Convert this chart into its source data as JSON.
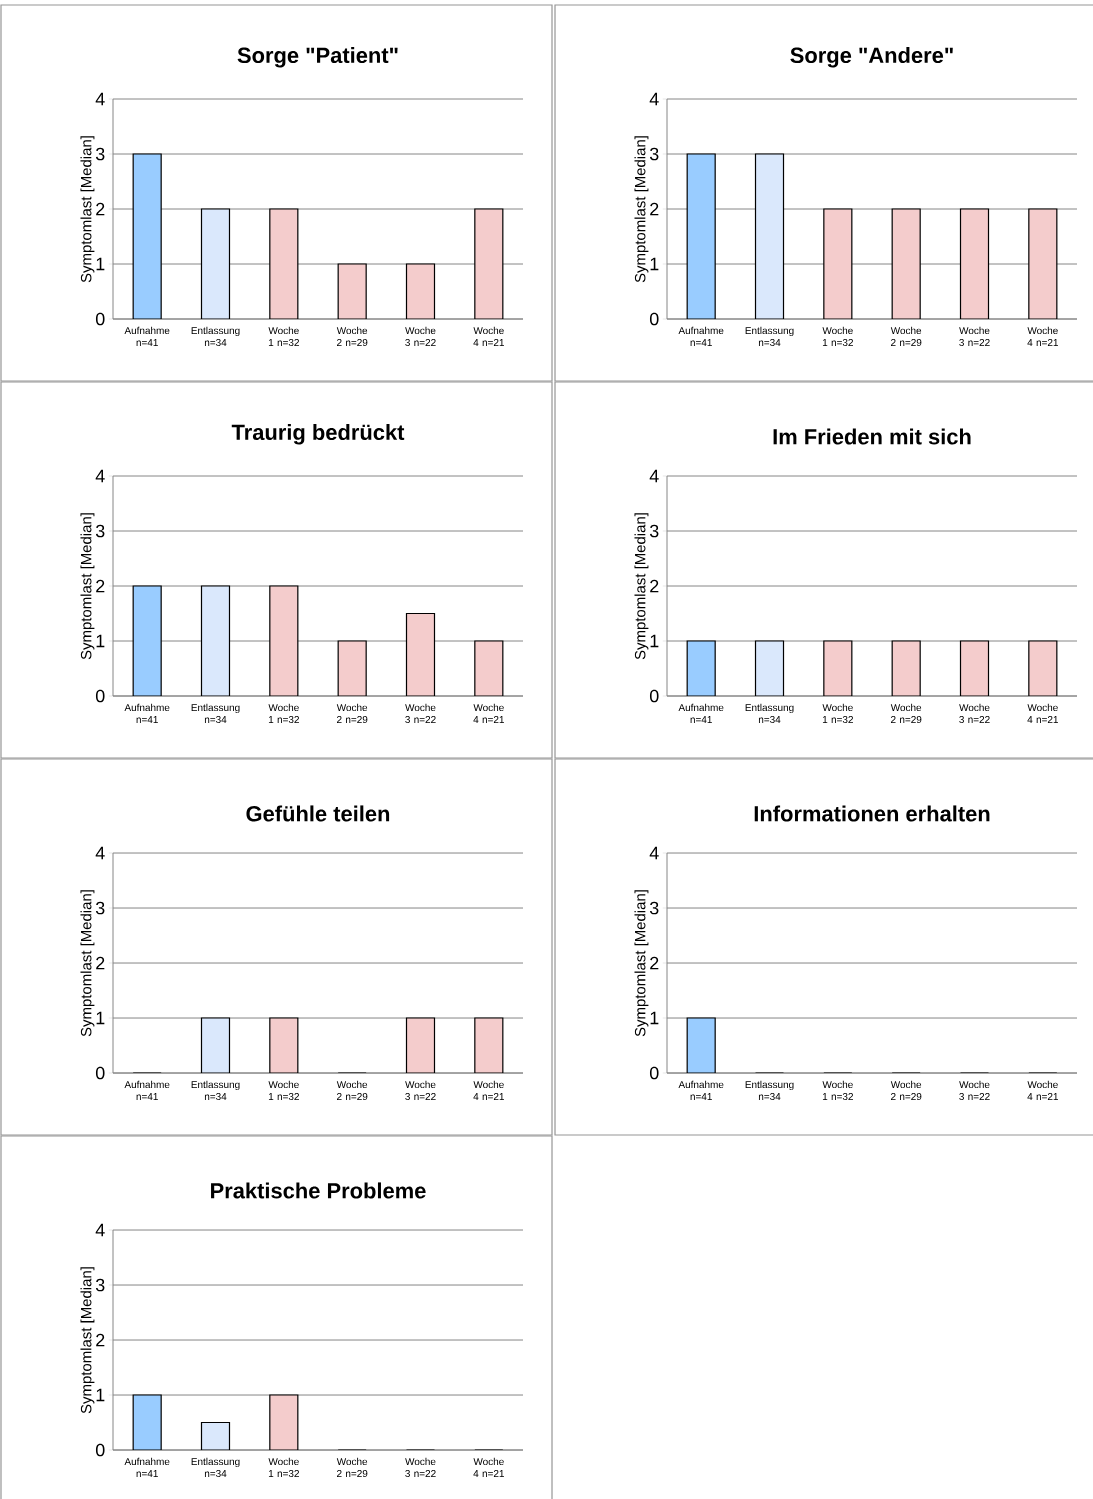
{
  "chart_data": [
    {
      "type": "bar",
      "title": "Sorge \"Patient\"",
      "ylabel": "Symptomlast [Median]",
      "categories": [
        "Aufnahme n=41",
        "Entlassung n=34",
        "Woche 1 n=32",
        "Woche 2 n=29",
        "Woche 3 n=22",
        "Woche 4 n=21"
      ],
      "values": [
        3,
        2,
        2,
        1,
        1,
        2
      ],
      "colors": [
        "#99ccff",
        "#dae8fc",
        "#f4cccc",
        "#f4cccc",
        "#f4cccc",
        "#f4cccc"
      ],
      "ylim": [
        0,
        4
      ],
      "yticks": [
        0,
        1,
        2,
        3,
        4
      ],
      "grid": "y"
    },
    {
      "type": "bar",
      "title": "Sorge \"Andere\"",
      "ylabel": "Symptomlast [Median]",
      "categories": [
        "Aufnahme n=41",
        "Entlassung n=34",
        "Woche 1 n=32",
        "Woche 2 n=29",
        "Woche 3 n=22",
        "Woche 4 n=21"
      ],
      "values": [
        3,
        3,
        2,
        2,
        2,
        2
      ],
      "colors": [
        "#99ccff",
        "#dae8fc",
        "#f4cccc",
        "#f4cccc",
        "#f4cccc",
        "#f4cccc"
      ],
      "ylim": [
        0,
        4
      ],
      "yticks": [
        0,
        1,
        2,
        3,
        4
      ],
      "grid": "y"
    },
    {
      "type": "bar",
      "title": "Traurig bedrückt",
      "ylabel": "Symptomlast [Median]",
      "categories": [
        "Aufnahme n=41",
        "Entlassung n=34",
        "Woche 1 n=32",
        "Woche 2 n=29",
        "Woche 3 n=22",
        "Woche 4 n=21"
      ],
      "values": [
        2,
        2,
        2,
        1,
        1.5,
        1
      ],
      "colors": [
        "#99ccff",
        "#dae8fc",
        "#f4cccc",
        "#f4cccc",
        "#f4cccc",
        "#f4cccc"
      ],
      "ylim": [
        0,
        4
      ],
      "yticks": [
        0,
        1,
        2,
        3,
        4
      ],
      "grid": "y"
    },
    {
      "type": "bar",
      "title": "Im Frieden mit sich",
      "ylabel": "Symptomlast [Median]",
      "categories": [
        "Aufnahme n=41",
        "Entlassung n=34",
        "Woche 1 n=32",
        "Woche 2 n=29",
        "Woche 3 n=22",
        "Woche 4 n=21"
      ],
      "values": [
        1,
        1,
        1,
        1,
        1,
        1
      ],
      "colors": [
        "#99ccff",
        "#dae8fc",
        "#f4cccc",
        "#f4cccc",
        "#f4cccc",
        "#f4cccc"
      ],
      "ylim": [
        0,
        4
      ],
      "yticks": [
        0,
        1,
        2,
        3,
        4
      ],
      "grid": "y"
    },
    {
      "type": "bar",
      "title": "Gefühle teilen",
      "ylabel": "Symptomlast [Median]",
      "categories": [
        "Aufnahme n=41",
        "Entlassung n=34",
        "Woche 1 n=32",
        "Woche 2 n=29",
        "Woche 3 n=22",
        "Woche 4 n=21"
      ],
      "values": [
        0,
        1,
        1,
        0,
        1,
        1
      ],
      "colors": [
        "#99ccff",
        "#dae8fc",
        "#f4cccc",
        "#f4cccc",
        "#f4cccc",
        "#f4cccc"
      ],
      "ylim": [
        0,
        4
      ],
      "yticks": [
        0,
        1,
        2,
        3,
        4
      ],
      "grid": "y"
    },
    {
      "type": "bar",
      "title": "Informationen erhalten",
      "ylabel": "Symptomlast [Median]",
      "categories": [
        "Aufnahme n=41",
        "Entlassung n=34",
        "Woche 1 n=32",
        "Woche 2 n=29",
        "Woche 3 n=22",
        "Woche 4 n=21"
      ],
      "values": [
        1,
        0,
        0,
        0,
        0,
        0
      ],
      "colors": [
        "#99ccff",
        "#dae8fc",
        "#f4cccc",
        "#f4cccc",
        "#f4cccc",
        "#f4cccc"
      ],
      "ylim": [
        0,
        4
      ],
      "yticks": [
        0,
        1,
        2,
        3,
        4
      ],
      "grid": "y"
    },
    {
      "type": "bar",
      "title": "Praktische Probleme",
      "ylabel": "Symptomlast [Median]",
      "categories": [
        "Aufnahme n=41",
        "Entlassung n=34",
        "Woche 1 n=32",
        "Woche 2 n=29",
        "Woche 3 n=22",
        "Woche 4 n=21"
      ],
      "values": [
        1,
        0.5,
        1,
        0,
        0,
        0
      ],
      "colors": [
        "#99ccff",
        "#dae8fc",
        "#f4cccc",
        "#f4cccc",
        "#f4cccc",
        "#f4cccc"
      ],
      "ylim": [
        0,
        4
      ],
      "yticks": [
        0,
        1,
        2,
        3,
        4
      ],
      "grid": "y"
    }
  ]
}
